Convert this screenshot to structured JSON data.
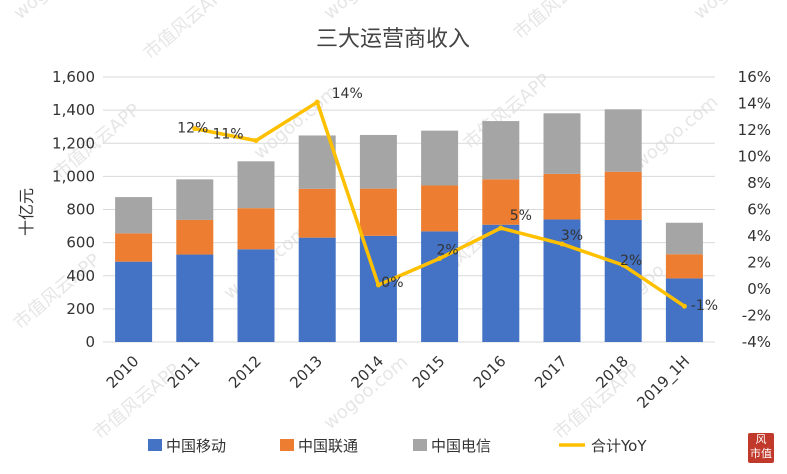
{
  "chart_data": {
    "type": "bar",
    "title": "三大运营商收入",
    "ylabel": "十亿元",
    "categories": [
      "2010",
      "2011",
      "2012",
      "2013",
      "2014",
      "2015",
      "2016",
      "2017",
      "2018",
      "2019_1H"
    ],
    "series": [
      {
        "name": "中国移动",
        "kind": "bar",
        "color": "#4472C4",
        "values": [
          485,
          528,
          560,
          630,
          641,
          668,
          708,
          740,
          737,
          384
        ]
      },
      {
        "name": "中国联通",
        "kind": "bar",
        "color": "#ED7D31",
        "values": [
          171,
          209,
          248,
          295,
          285,
          277,
          274,
          275,
          291,
          146
        ]
      },
      {
        "name": "中国电信",
        "kind": "bar",
        "color": "#A5A5A5",
        "values": [
          219,
          245,
          283,
          322,
          324,
          331,
          352,
          366,
          377,
          190
        ]
      },
      {
        "name": "合计YoY",
        "kind": "line",
        "axis": "right",
        "color": "#FFC000",
        "values": [
          null,
          12.1,
          11.2,
          14.1,
          0.3,
          2.3,
          4.6,
          3.4,
          1.8,
          -1.3
        ],
        "labels": [
          null,
          "12%",
          "11%",
          "14%",
          "0%",
          "2%",
          "5%",
          "3%",
          "2%",
          "-1%"
        ]
      }
    ],
    "y_left": {
      "min": 0,
      "max": 1600,
      "ticks": [
        "0",
        "200",
        "400",
        "600",
        "800",
        "1,000",
        "1,200",
        "1,400",
        "1,600"
      ]
    },
    "y_right": {
      "min": -4,
      "max": 16,
      "ticks": [
        "-4%",
        "-2%",
        "0%",
        "2%",
        "4%",
        "6%",
        "8%",
        "10%",
        "12%",
        "14%",
        "16%"
      ]
    },
    "legend": "bottom"
  },
  "watermark": {
    "texts": [
      "wogoo.com",
      "市值风云APP"
    ]
  },
  "stamp": {
    "line1": "风",
    "line2": "市值"
  }
}
